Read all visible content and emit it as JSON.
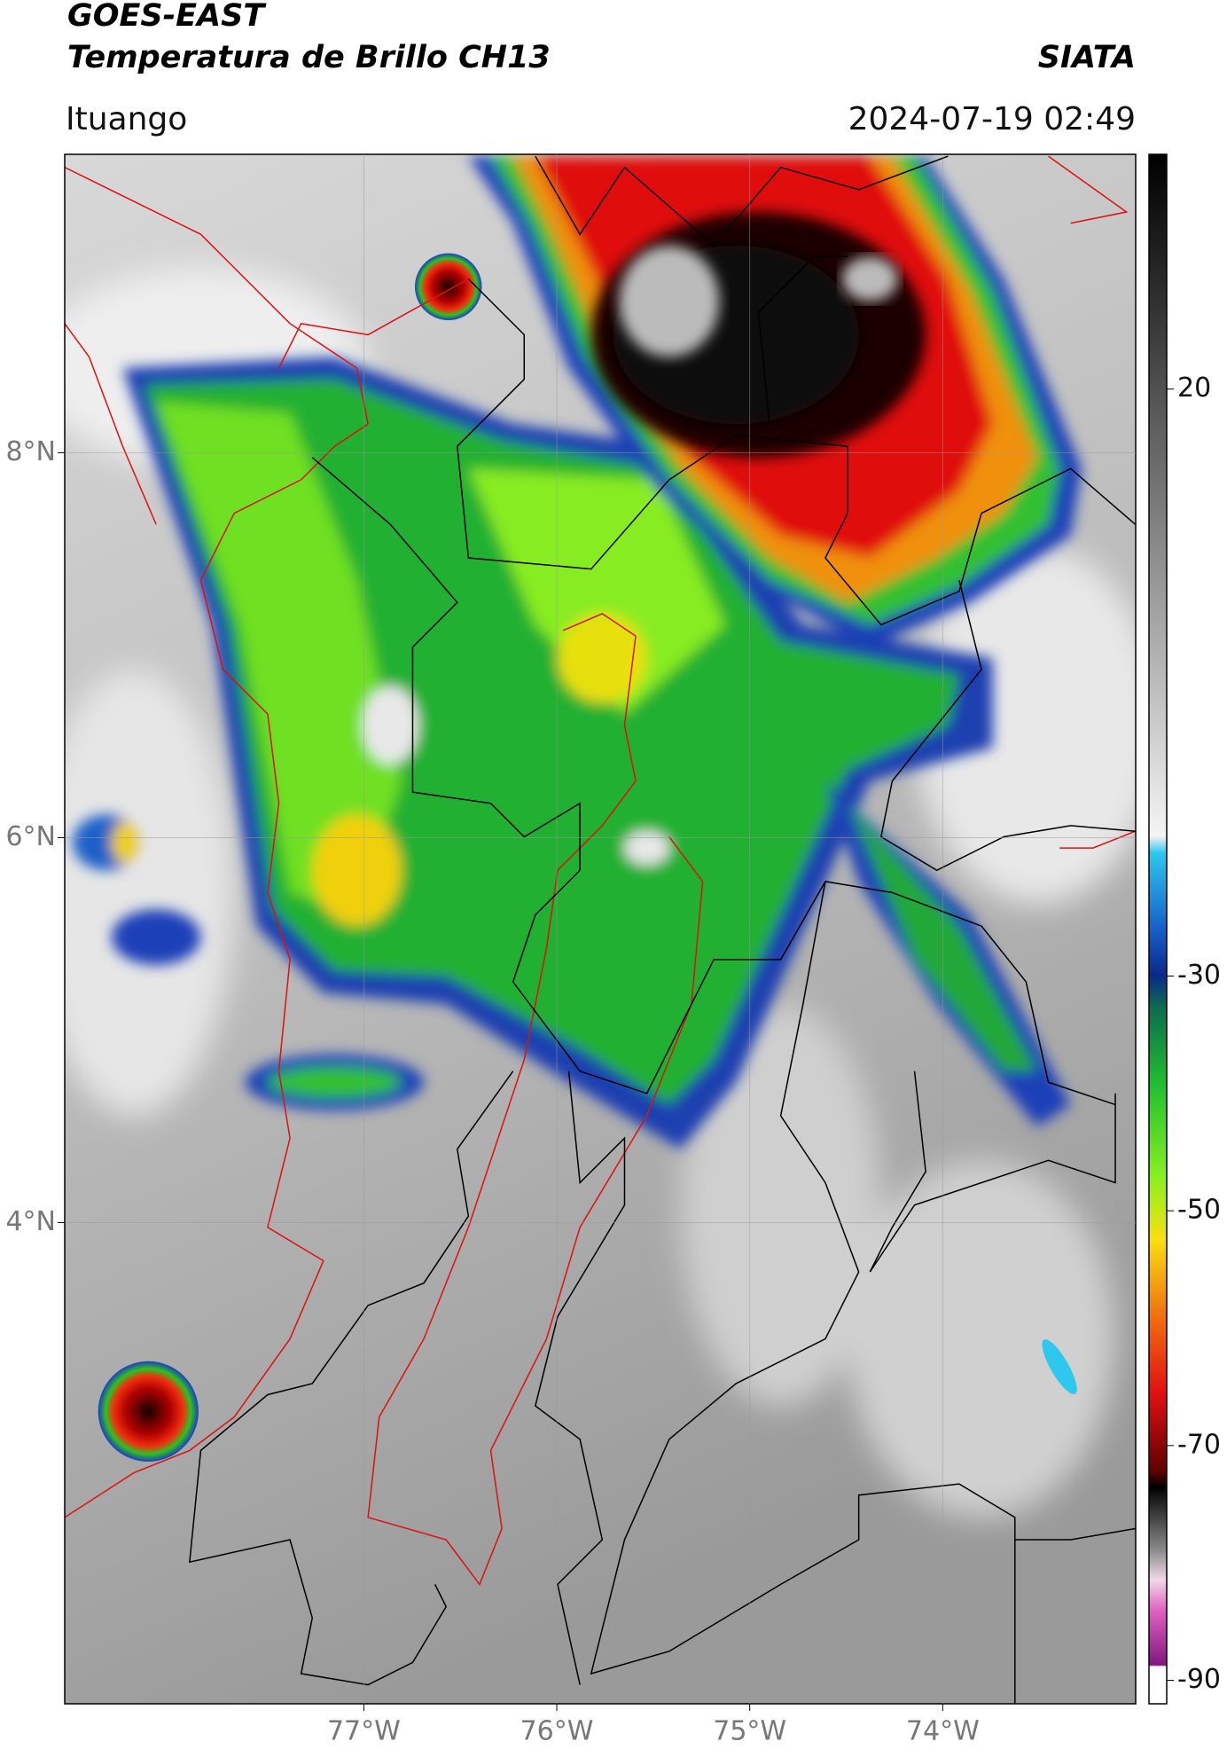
{
  "header": {
    "title": "GOES-EAST",
    "subtitle": "Temperatura de Brillo CH13",
    "brand": "SIATA",
    "location": "Ituango",
    "datetime": "2024-07-19 02:49"
  },
  "map": {
    "xlim": [
      -78.55,
      -73.0
    ],
    "ylim": [
      1.5,
      9.55
    ],
    "xticks": [
      {
        "value": -77,
        "label": "77°W"
      },
      {
        "value": -76,
        "label": "76°W"
      },
      {
        "value": -75,
        "label": "75°W"
      },
      {
        "value": -74,
        "label": "74°W"
      }
    ],
    "yticks": [
      {
        "value": 8,
        "label": "8°N"
      },
      {
        "value": 6,
        "label": "6°N"
      },
      {
        "value": 4,
        "label": "4°N"
      }
    ]
  },
  "colorbar": {
    "lim": [
      -92,
      40
    ],
    "ticks": [
      20,
      -30,
      -50,
      -70,
      -90
    ]
  }
}
